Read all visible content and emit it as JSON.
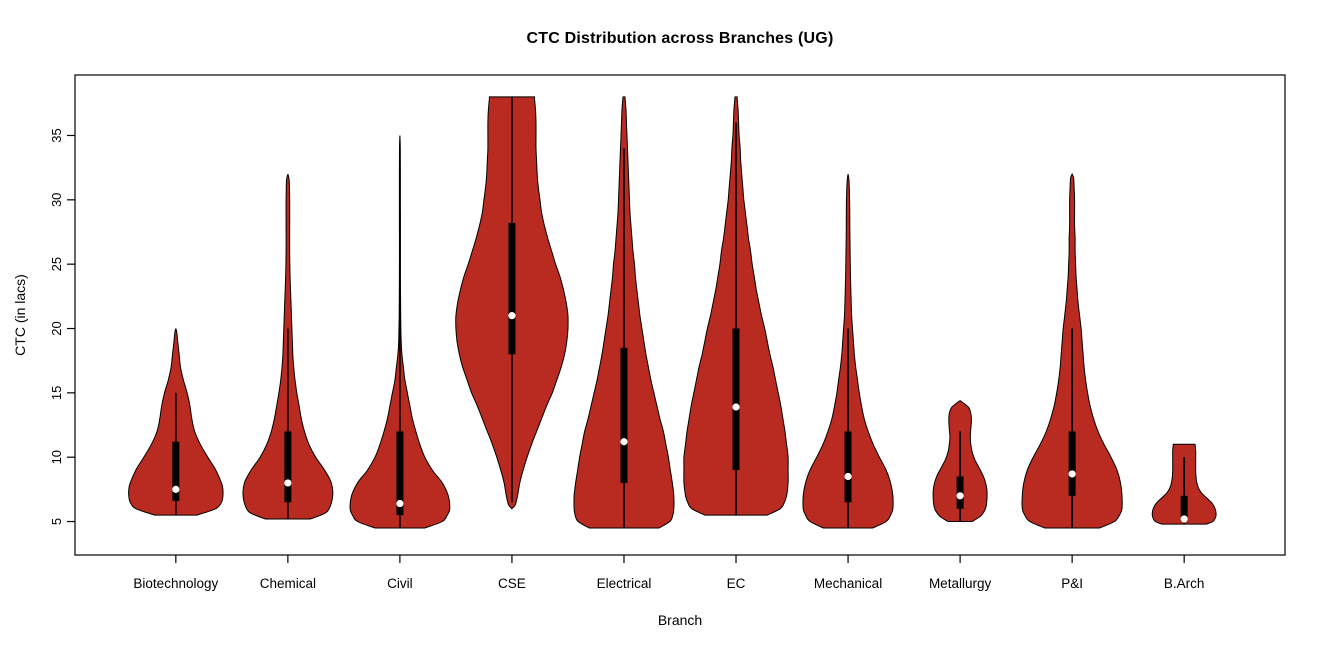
{
  "page": {
    "background": "#FFFFFF"
  },
  "chart_data": {
    "type": "violin",
    "title": "CTC Distribution across Branches (UG)",
    "xlabel": "Branch",
    "ylabel": "CTC (in lacs)",
    "ylim": [
      2.4,
      39.7
    ],
    "yticks": [
      5,
      10,
      15,
      20,
      25,
      30,
      35
    ],
    "grid": false,
    "legend": "none",
    "fill_color": "#B92B20",
    "outline_color": "#000000",
    "box_color": "#000000",
    "median_dot_color": "#FFFFFF",
    "categories": [
      "Biotechnology",
      "Chemical",
      "Civil",
      "CSE",
      "Electrical",
      "EC",
      "Mechanical",
      "Metallurgy",
      "P&I",
      "B.Arch"
    ],
    "violins": [
      {
        "branch": "Biotechnology",
        "min": 5.5,
        "max": 20,
        "q1": 6.6,
        "median": 7.5,
        "q3": 11.2,
        "whisker_low": 5.5,
        "whisker_high": 15,
        "max_halfwidth_frac": 0.84,
        "shape": [
          [
            5.5,
            0.45
          ],
          [
            6,
            0.85
          ],
          [
            6.5,
            0.97
          ],
          [
            7,
            1.0
          ],
          [
            7.5,
            1.0
          ],
          [
            8,
            0.97
          ],
          [
            9,
            0.85
          ],
          [
            10,
            0.68
          ],
          [
            11,
            0.52
          ],
          [
            12,
            0.4
          ],
          [
            13,
            0.34
          ],
          [
            14,
            0.3
          ],
          [
            15,
            0.24
          ],
          [
            16,
            0.16
          ],
          [
            17,
            0.1
          ],
          [
            18,
            0.07
          ],
          [
            19,
            0.04
          ],
          [
            19.7,
            0.02
          ],
          [
            20,
            0.0
          ]
        ]
      },
      {
        "branch": "Chemical",
        "min": 5.2,
        "max": 32,
        "q1": 6.5,
        "median": 8,
        "q3": 12,
        "whisker_low": 5.2,
        "whisker_high": 20,
        "max_halfwidth_frac": 0.8,
        "shape": [
          [
            5.2,
            0.5
          ],
          [
            5.6,
            0.8
          ],
          [
            6,
            0.92
          ],
          [
            7,
            1.0
          ],
          [
            8,
            0.97
          ],
          [
            9,
            0.82
          ],
          [
            10,
            0.62
          ],
          [
            11,
            0.47
          ],
          [
            12,
            0.37
          ],
          [
            13,
            0.3
          ],
          [
            14,
            0.25
          ],
          [
            15,
            0.2
          ],
          [
            16,
            0.16
          ],
          [
            17,
            0.13
          ],
          [
            18,
            0.11
          ],
          [
            20,
            0.09
          ],
          [
            22,
            0.07
          ],
          [
            24,
            0.05
          ],
          [
            26,
            0.04
          ],
          [
            28,
            0.04
          ],
          [
            30,
            0.04
          ],
          [
            31.5,
            0.03
          ],
          [
            32,
            0.0
          ]
        ]
      },
      {
        "branch": "Civil",
        "min": 4.5,
        "max": 35,
        "q1": 5.5,
        "median": 6.4,
        "q3": 12,
        "whisker_low": 4.5,
        "whisker_high": 29,
        "max_halfwidth_frac": 0.89,
        "shape": [
          [
            4.5,
            0.5
          ],
          [
            5,
            0.85
          ],
          [
            5.5,
            0.95
          ],
          [
            6,
            1.0
          ],
          [
            7,
            0.97
          ],
          [
            8,
            0.85
          ],
          [
            9,
            0.65
          ],
          [
            10,
            0.5
          ],
          [
            11,
            0.4
          ],
          [
            12,
            0.32
          ],
          [
            13,
            0.25
          ],
          [
            14,
            0.2
          ],
          [
            15,
            0.15
          ],
          [
            16,
            0.1
          ],
          [
            17,
            0.07
          ],
          [
            18,
            0.04
          ],
          [
            19,
            0.025
          ],
          [
            21,
            0.015
          ],
          [
            24,
            0.01
          ],
          [
            28,
            0.01
          ],
          [
            31,
            0.01
          ],
          [
            34,
            0.008
          ],
          [
            35,
            0.0
          ]
        ]
      },
      {
        "branch": "CSE",
        "min": 6,
        "max": 38,
        "q1": 18,
        "median": 21,
        "q3": 28.2,
        "whisker_low": 6.5,
        "whisker_high": 38,
        "max_halfwidth_frac": 1.0,
        "shape": [
          [
            6,
            0.0
          ],
          [
            6.3,
            0.06
          ],
          [
            7,
            0.1
          ],
          [
            8,
            0.14
          ],
          [
            9,
            0.2
          ],
          [
            10,
            0.27
          ],
          [
            11,
            0.35
          ],
          [
            12,
            0.44
          ],
          [
            13,
            0.53
          ],
          [
            14,
            0.62
          ],
          [
            15,
            0.72
          ],
          [
            16,
            0.8
          ],
          [
            17,
            0.88
          ],
          [
            18,
            0.94
          ],
          [
            19,
            0.98
          ],
          [
            20,
            1.0
          ],
          [
            21,
            1.0
          ],
          [
            22,
            0.97
          ],
          [
            23,
            0.92
          ],
          [
            24,
            0.86
          ],
          [
            25,
            0.78
          ],
          [
            26,
            0.71
          ],
          [
            27,
            0.64
          ],
          [
            28,
            0.58
          ],
          [
            29,
            0.53
          ],
          [
            30,
            0.5
          ],
          [
            31,
            0.47
          ],
          [
            32,
            0.45
          ],
          [
            33,
            0.44
          ],
          [
            34,
            0.43
          ],
          [
            35,
            0.43
          ],
          [
            36,
            0.43
          ],
          [
            37,
            0.42
          ],
          [
            38,
            0.4
          ]
        ]
      },
      {
        "branch": "Electrical",
        "min": 4.5,
        "max": 38,
        "q1": 8,
        "median": 11.2,
        "q3": 18.5,
        "whisker_low": 4.5,
        "whisker_high": 34,
        "max_halfwidth_frac": 0.89,
        "shape": [
          [
            4.5,
            0.7
          ],
          [
            5,
            0.92
          ],
          [
            5.5,
            0.98
          ],
          [
            6,
            1.0
          ],
          [
            7,
            1.0
          ],
          [
            8,
            0.97
          ],
          [
            9,
            0.93
          ],
          [
            10,
            0.89
          ],
          [
            11,
            0.84
          ],
          [
            12,
            0.79
          ],
          [
            13,
            0.72
          ],
          [
            14,
            0.66
          ],
          [
            15,
            0.6
          ],
          [
            16,
            0.54
          ],
          [
            17,
            0.49
          ],
          [
            18,
            0.44
          ],
          [
            19,
            0.4
          ],
          [
            20,
            0.36
          ],
          [
            21,
            0.32
          ],
          [
            22,
            0.29
          ],
          [
            23,
            0.26
          ],
          [
            24,
            0.23
          ],
          [
            25,
            0.21
          ],
          [
            26,
            0.18
          ],
          [
            27,
            0.16
          ],
          [
            28,
            0.14
          ],
          [
            29,
            0.12
          ],
          [
            30,
            0.11
          ],
          [
            31,
            0.1
          ],
          [
            32,
            0.09
          ],
          [
            33,
            0.08
          ],
          [
            34,
            0.07
          ],
          [
            35,
            0.06
          ],
          [
            36,
            0.05
          ],
          [
            37,
            0.04
          ],
          [
            38,
            0.02
          ]
        ]
      },
      {
        "branch": "EC",
        "min": 5.5,
        "max": 38,
        "q1": 9,
        "median": 13.9,
        "q3": 20,
        "whisker_low": 5.5,
        "whisker_high": 36,
        "max_halfwidth_frac": 0.93,
        "shape": [
          [
            5.5,
            0.6
          ],
          [
            6,
            0.85
          ],
          [
            6.5,
            0.93
          ],
          [
            7,
            0.97
          ],
          [
            8,
            1.0
          ],
          [
            9,
            1.0
          ],
          [
            10,
            1.0
          ],
          [
            11,
            0.97
          ],
          [
            12,
            0.94
          ],
          [
            13,
            0.9
          ],
          [
            14,
            0.86
          ],
          [
            15,
            0.81
          ],
          [
            16,
            0.76
          ],
          [
            17,
            0.71
          ],
          [
            18,
            0.65
          ],
          [
            19,
            0.6
          ],
          [
            20,
            0.55
          ],
          [
            21,
            0.49
          ],
          [
            22,
            0.44
          ],
          [
            23,
            0.39
          ],
          [
            24,
            0.35
          ],
          [
            25,
            0.31
          ],
          [
            26,
            0.28
          ],
          [
            27,
            0.24
          ],
          [
            28,
            0.21
          ],
          [
            29,
            0.18
          ],
          [
            30,
            0.15
          ],
          [
            31,
            0.13
          ],
          [
            32,
            0.11
          ],
          [
            33,
            0.09
          ],
          [
            34,
            0.08
          ],
          [
            35,
            0.06
          ],
          [
            36,
            0.05
          ],
          [
            37,
            0.04
          ],
          [
            38,
            0.02
          ]
        ]
      },
      {
        "branch": "Mechanical",
        "min": 4.5,
        "max": 32,
        "q1": 6.5,
        "median": 8.5,
        "q3": 12,
        "whisker_low": 4.5,
        "whisker_high": 20,
        "max_halfwidth_frac": 0.8,
        "shape": [
          [
            4.5,
            0.55
          ],
          [
            5,
            0.85
          ],
          [
            5.5,
            0.95
          ],
          [
            6,
            1.0
          ],
          [
            7,
            1.0
          ],
          [
            8,
            0.95
          ],
          [
            9,
            0.85
          ],
          [
            10,
            0.7
          ],
          [
            11,
            0.56
          ],
          [
            12,
            0.45
          ],
          [
            13,
            0.36
          ],
          [
            14,
            0.3
          ],
          [
            15,
            0.25
          ],
          [
            16,
            0.21
          ],
          [
            17,
            0.17
          ],
          [
            18,
            0.14
          ],
          [
            19,
            0.12
          ],
          [
            20,
            0.1
          ],
          [
            21,
            0.08
          ],
          [
            22,
            0.07
          ],
          [
            24,
            0.055
          ],
          [
            26,
            0.045
          ],
          [
            28,
            0.04
          ],
          [
            30,
            0.035
          ],
          [
            31.5,
            0.02
          ],
          [
            32,
            0.0
          ]
        ]
      },
      {
        "branch": "Metallurgy",
        "min": 5,
        "max": 14.4,
        "q1": 6,
        "median": 7,
        "q3": 8.5,
        "whisker_low": 5,
        "whisker_high": 12,
        "max_halfwidth_frac": 0.48,
        "shape": [
          [
            5,
            0.45
          ],
          [
            5.4,
            0.75
          ],
          [
            5.8,
            0.9
          ],
          [
            6.2,
            0.97
          ],
          [
            6.8,
            1.0
          ],
          [
            7.4,
            1.0
          ],
          [
            8,
            0.95
          ],
          [
            8.6,
            0.85
          ],
          [
            9.2,
            0.7
          ],
          [
            9.8,
            0.55
          ],
          [
            10.4,
            0.45
          ],
          [
            11,
            0.4
          ],
          [
            11.6,
            0.38
          ],
          [
            12.2,
            0.4
          ],
          [
            12.8,
            0.42
          ],
          [
            13.4,
            0.4
          ],
          [
            13.9,
            0.3
          ],
          [
            14.4,
            0.0
          ]
        ]
      },
      {
        "branch": "P&I",
        "min": 4.5,
        "max": 32,
        "q1": 7,
        "median": 8.7,
        "q3": 12,
        "whisker_low": 4.5,
        "whisker_high": 20,
        "max_halfwidth_frac": 0.89,
        "shape": [
          [
            4.5,
            0.55
          ],
          [
            5,
            0.85
          ],
          [
            5.5,
            0.95
          ],
          [
            6,
            1.0
          ],
          [
            7,
            1.0
          ],
          [
            8,
            0.97
          ],
          [
            9,
            0.9
          ],
          [
            10,
            0.78
          ],
          [
            11,
            0.64
          ],
          [
            12,
            0.52
          ],
          [
            13,
            0.43
          ],
          [
            14,
            0.36
          ],
          [
            15,
            0.31
          ],
          [
            16,
            0.27
          ],
          [
            17,
            0.24
          ],
          [
            18,
            0.22
          ],
          [
            19,
            0.2
          ],
          [
            20,
            0.18
          ],
          [
            21,
            0.15
          ],
          [
            22,
            0.12
          ],
          [
            23,
            0.1
          ],
          [
            24,
            0.08
          ],
          [
            25,
            0.07
          ],
          [
            26,
            0.06
          ],
          [
            27,
            0.06
          ],
          [
            28,
            0.05
          ],
          [
            29,
            0.05
          ],
          [
            30,
            0.05
          ],
          [
            31,
            0.04
          ],
          [
            31.7,
            0.03
          ],
          [
            32,
            0.0
          ]
        ]
      },
      {
        "branch": "B.Arch",
        "min": 4.8,
        "max": 11,
        "q1": 5,
        "median": 5.2,
        "q3": 7,
        "whisker_low": 4.8,
        "whisker_high": 10,
        "max_halfwidth_frac": 0.57,
        "shape": [
          [
            4.8,
            0.7
          ],
          [
            5,
            0.9
          ],
          [
            5.3,
            0.98
          ],
          [
            5.6,
            1.0
          ],
          [
            6,
            0.97
          ],
          [
            6.4,
            0.88
          ],
          [
            6.8,
            0.72
          ],
          [
            7.2,
            0.55
          ],
          [
            7.6,
            0.45
          ],
          [
            8,
            0.4
          ],
          [
            8.5,
            0.37
          ],
          [
            9,
            0.36
          ],
          [
            9.5,
            0.36
          ],
          [
            10,
            0.36
          ],
          [
            10.5,
            0.36
          ],
          [
            11,
            0.34
          ]
        ]
      }
    ]
  }
}
